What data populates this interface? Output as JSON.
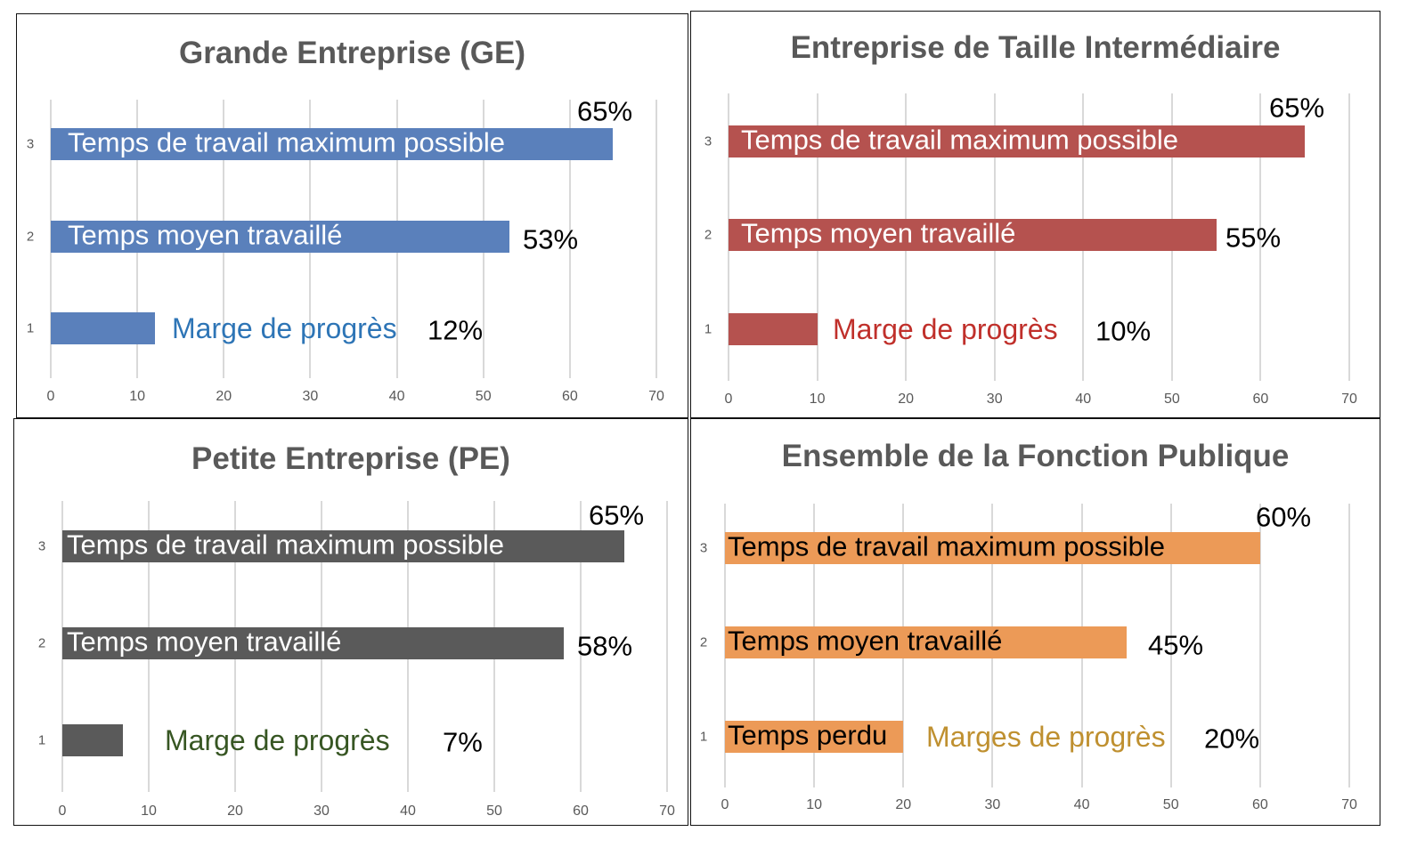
{
  "chart_data": [
    {
      "type": "bar",
      "orientation": "horizontal",
      "title": "Grande Entreprise (GE)",
      "color": "#5a80bb",
      "inbar_text_color": "#ffffff",
      "margin_label_color": "#2e75b6",
      "categories": [
        "1",
        "2",
        "3"
      ],
      "values": [
        12,
        53,
        65
      ],
      "bar_labels": [
        "",
        "Temps moyen travaillé",
        "Temps de travail maximum possible"
      ],
      "margin_label": "Marge de progrès",
      "value_labels": [
        "12%",
        "53%",
        "65%"
      ],
      "xticks": [
        "0",
        "10",
        "20",
        "30",
        "40",
        "50",
        "60",
        "70"
      ],
      "xlim": [
        0,
        70
      ],
      "grid": true
    },
    {
      "type": "bar",
      "orientation": "horizontal",
      "title": "Entreprise de Taille Intermédiaire",
      "color": "#b5524f",
      "inbar_text_color": "#ffffff",
      "margin_label_color": "#c0302b",
      "categories": [
        "1",
        "2",
        "3"
      ],
      "values": [
        10,
        55,
        65
      ],
      "bar_labels": [
        "",
        "Temps moyen travaillé",
        "Temps de travail maximum possible"
      ],
      "margin_label": "Marge de progrès",
      "value_labels": [
        "10%",
        "55%",
        "65%"
      ],
      "xticks": [
        "0",
        "10",
        "20",
        "30",
        "40",
        "50",
        "60",
        "70"
      ],
      "xlim": [
        0,
        70
      ],
      "grid": true
    },
    {
      "type": "bar",
      "orientation": "horizontal",
      "title": "Petite Entreprise (PE)",
      "color": "#5a5a5a",
      "inbar_text_color": "#ffffff",
      "margin_label_color": "#375623",
      "categories": [
        "1",
        "2",
        "3"
      ],
      "values": [
        7,
        58,
        65
      ],
      "bar_labels": [
        "",
        "Temps moyen travaillé",
        "Temps de travail maximum possible"
      ],
      "margin_label": "Marge de progrès",
      "value_labels": [
        "7%",
        "58%",
        "65%"
      ],
      "xticks": [
        "0",
        "10",
        "20",
        "30",
        "40",
        "50",
        "60",
        "70"
      ],
      "xlim": [
        0,
        70
      ],
      "grid": true
    },
    {
      "type": "bar",
      "orientation": "horizontal",
      "title": "Ensemble de la Fonction Publique",
      "color": "#ec9a57",
      "inbar_text_color": "#000000",
      "margin_label_color": "#bf9030",
      "categories": [
        "1",
        "2",
        "3"
      ],
      "values": [
        20,
        45,
        60
      ],
      "bar_labels": [
        "Temps perdu",
        "Temps moyen travaillé",
        "Temps de travail maximum possible"
      ],
      "margin_label": "Marges de progrès",
      "value_labels": [
        "20%",
        "45%",
        "60%"
      ],
      "xticks": [
        "0",
        "10",
        "20",
        "30",
        "40",
        "50",
        "60",
        "70"
      ],
      "xlim": [
        0,
        70
      ],
      "grid": true
    }
  ]
}
